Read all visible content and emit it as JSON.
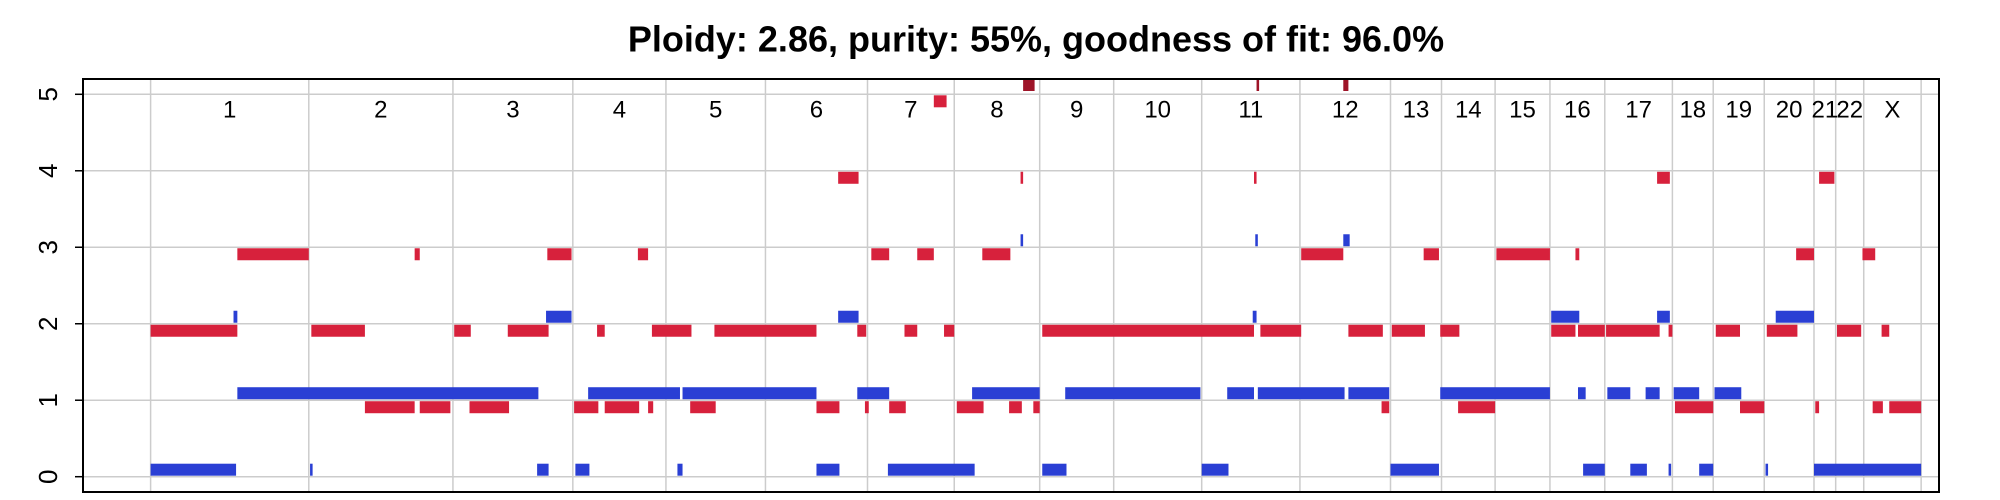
{
  "chart_data": {
    "type": "segments",
    "title": "Ploidy: 2.86, purity: 55%, goodness of fit: 96.0%",
    "ylim": [
      -0.2,
      5.2
    ],
    "yticks": [
      0,
      1,
      2,
      3,
      4,
      5
    ],
    "xlim": [
      65,
      1520
    ],
    "grid": true,
    "chromosomes": [
      "1",
      "2",
      "3",
      "4",
      "5",
      "6",
      "7",
      "8",
      "9",
      "10",
      "11",
      "12",
      "13",
      "14",
      "15",
      "16",
      "17",
      "18",
      "19",
      "20",
      "21",
      "22",
      "X"
    ],
    "chromosome_bounds": [
      118,
      242,
      355,
      449,
      522,
      600,
      680,
      748,
      815,
      873,
      942,
      1019,
      1090,
      1130,
      1172,
      1215,
      1258,
      1311,
      1343,
      1383,
      1422,
      1439,
      1461,
      1506
    ],
    "series": [
      {
        "color": "#d7213c",
        "segments": [
          [
            118,
            186,
            2
          ],
          [
            186,
            242,
            3
          ],
          [
            244,
            286,
            2
          ],
          [
            286,
            325,
            1
          ],
          [
            325,
            329,
            3
          ],
          [
            329,
            353,
            1
          ],
          [
            356,
            369,
            2
          ],
          [
            368,
            399,
            1
          ],
          [
            398,
            430,
            2
          ],
          [
            429,
            448,
            3
          ],
          [
            450,
            469,
            1
          ],
          [
            468,
            474,
            2
          ],
          [
            474,
            501,
            1
          ],
          [
            500,
            508,
            3
          ],
          [
            508,
            512,
            1
          ],
          [
            511,
            542,
            2
          ],
          [
            541,
            561,
            1
          ],
          [
            560,
            640,
            2
          ],
          [
            640,
            658,
            1
          ],
          [
            657,
            673,
            4
          ],
          [
            672,
            679,
            2
          ],
          [
            678,
            681,
            1
          ],
          [
            683,
            697,
            3
          ],
          [
            697,
            710,
            1
          ],
          [
            709,
            719,
            2
          ],
          [
            719,
            732,
            3
          ],
          [
            732,
            742,
            5
          ],
          [
            740,
            748,
            2
          ],
          [
            750,
            771,
            1
          ],
          [
            770,
            792,
            3
          ],
          [
            791,
            801,
            1
          ],
          [
            800,
            802,
            4
          ],
          [
            810,
            815,
            1
          ],
          [
            817,
            983,
            2
          ],
          [
            983,
            985,
            4
          ],
          [
            988,
            1020,
            2
          ],
          [
            1020,
            1053,
            3
          ],
          [
            1057,
            1084,
            2
          ],
          [
            1083,
            1089,
            1
          ],
          [
            1091,
            1117,
            2
          ],
          [
            1116,
            1128,
            3
          ],
          [
            1129,
            1144,
            2
          ],
          [
            1143,
            1172,
            1
          ],
          [
            1173,
            1215,
            3
          ],
          [
            1216,
            1235,
            2
          ],
          [
            1235,
            1238,
            3
          ],
          [
            1237,
            1258,
            2
          ],
          [
            1259,
            1301,
            2
          ],
          [
            1299,
            1309,
            4
          ],
          [
            1308,
            1311,
            2
          ],
          [
            1313,
            1343,
            1
          ],
          [
            1345,
            1364,
            2
          ],
          [
            1364,
            1383,
            1
          ],
          [
            1385,
            1409,
            2
          ],
          [
            1408,
            1422,
            3
          ],
          [
            1423,
            1426,
            1
          ],
          [
            1426,
            1438,
            4
          ],
          [
            1440,
            1459,
            2
          ],
          [
            1460,
            1470,
            3
          ],
          [
            1468,
            1476,
            1
          ],
          [
            1475,
            1481,
            2
          ],
          [
            1481,
            1506,
            1
          ]
        ]
      },
      {
        "color": "#2a3fd4",
        "segments": [
          [
            118,
            185,
            0
          ],
          [
            183,
            186,
            2
          ],
          [
            186,
            422,
            1
          ],
          [
            243,
            245,
            0
          ],
          [
            428,
            448,
            2
          ],
          [
            421,
            430,
            0
          ],
          [
            451,
            462,
            0
          ],
          [
            461,
            533,
            1
          ],
          [
            531,
            535,
            0
          ],
          [
            535,
            640,
            1
          ],
          [
            640,
            658,
            0
          ],
          [
            657,
            673,
            2
          ],
          [
            672,
            697,
            1
          ],
          [
            696,
            764,
            0
          ],
          [
            762,
            815,
            1
          ],
          [
            800,
            802,
            3
          ],
          [
            817,
            836,
            0
          ],
          [
            835,
            941,
            1
          ],
          [
            942,
            963,
            0
          ],
          [
            962,
            983,
            1
          ],
          [
            982,
            985,
            2
          ],
          [
            984,
            986,
            3
          ],
          [
            986,
            1054,
            1
          ],
          [
            1053,
            1058,
            3
          ],
          [
            1057,
            1089,
            1
          ],
          [
            1090,
            1128,
            0
          ],
          [
            1129,
            1215,
            1
          ],
          [
            1216,
            1238,
            2
          ],
          [
            1237,
            1243,
            1
          ],
          [
            1241,
            1258,
            0
          ],
          [
            1260,
            1278,
            1
          ],
          [
            1278,
            1291,
            0
          ],
          [
            1290,
            1301,
            1
          ],
          [
            1299,
            1309,
            2
          ],
          [
            1308,
            1310,
            0
          ],
          [
            1312,
            1332,
            1
          ],
          [
            1332,
            1343,
            0
          ],
          [
            1344,
            1365,
            1
          ],
          [
            1384,
            1386,
            0
          ],
          [
            1392,
            1422,
            2
          ],
          [
            1422,
            1506,
            0
          ]
        ]
      },
      {
        "color": "#9e1428",
        "segments": [
          [
            802,
            811,
            5.2
          ],
          [
            985,
            987,
            5.2
          ],
          [
            1053,
            1057,
            5.2
          ]
        ]
      }
    ]
  }
}
